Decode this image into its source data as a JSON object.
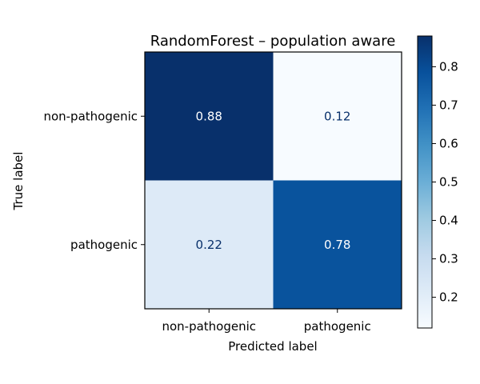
{
  "chart_data": {
    "type": "heatmap",
    "title": "RandomForest – population aware",
    "xlabel": "Predicted label",
    "ylabel": "True label",
    "x_categories": [
      "non-pathogenic",
      "pathogenic"
    ],
    "y_categories": [
      "non-pathogenic",
      "pathogenic"
    ],
    "values": [
      [
        0.88,
        0.12
      ],
      [
        0.22,
        0.78
      ]
    ],
    "value_labels": [
      [
        "0.88",
        "0.12"
      ],
      [
        "0.22",
        "0.78"
      ]
    ],
    "colormap": "Blues",
    "colorbar": {
      "range": [
        0.12,
        0.88
      ],
      "ticks": [
        0.2,
        0.3,
        0.4,
        0.5,
        0.6,
        0.7,
        0.8
      ],
      "tick_labels": [
        "0.2",
        "0.3",
        "0.4",
        "0.5",
        "0.6",
        "0.7",
        "0.8"
      ]
    },
    "text_colors": {
      "on_dark": "#ffffff",
      "on_light": "#08306b"
    },
    "grid": false
  }
}
